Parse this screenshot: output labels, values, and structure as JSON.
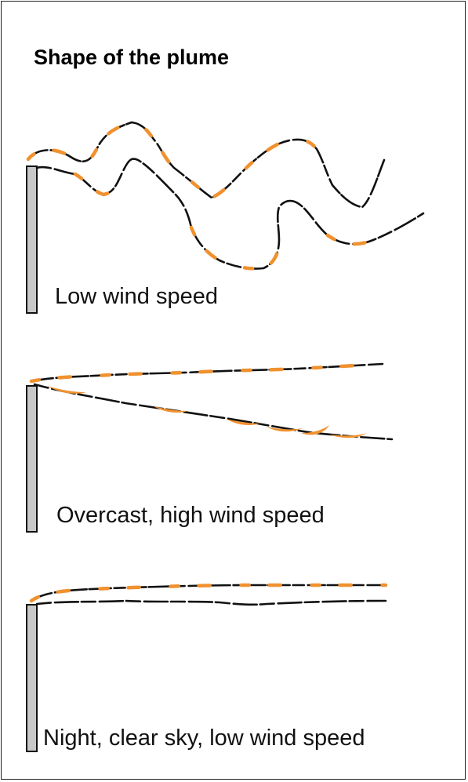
{
  "title": "Shape of the plume",
  "panels": [
    {
      "label": "Low wind speed"
    },
    {
      "label": "Overcast, high wind speed"
    },
    {
      "label": "Night, clear sky, low wind speed"
    }
  ],
  "colors": {
    "plume_shading": "#f0912f",
    "stack": "#c8c8c8",
    "outline": "#111111"
  }
}
